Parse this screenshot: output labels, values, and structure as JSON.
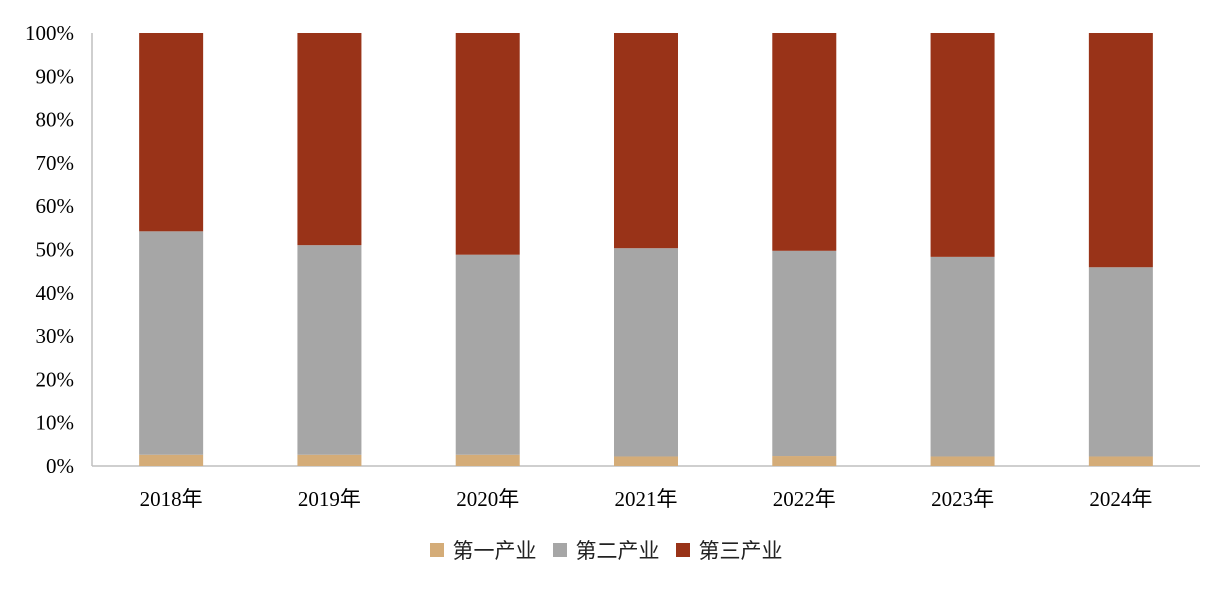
{
  "chart_data": {
    "type": "bar",
    "stacked": true,
    "categories": [
      "2018年",
      "2019年",
      "2020年",
      "2021年",
      "2022年",
      "2023年",
      "2024年"
    ],
    "series": [
      {
        "name": "第一产业",
        "color": "#D4AC78",
        "values": [
          2.6,
          2.6,
          2.6,
          2.2,
          2.3,
          2.2,
          2.2
        ]
      },
      {
        "name": "第二产业",
        "color": "#A6A6A6",
        "values": [
          51.6,
          48.4,
          46.2,
          48.1,
          47.4,
          46.1,
          43.7
        ]
      },
      {
        "name": "第三产业",
        "color": "#993318",
        "values": [
          45.8,
          49.0,
          51.2,
          49.7,
          50.3,
          51.7,
          54.1
        ]
      }
    ],
    "ylim": [
      0,
      100
    ],
    "yticks": [
      "0%",
      "10%",
      "20%",
      "30%",
      "40%",
      "50%",
      "60%",
      "70%",
      "80%",
      "90%",
      "100%"
    ],
    "grid": false,
    "legend_position": "bottom"
  }
}
